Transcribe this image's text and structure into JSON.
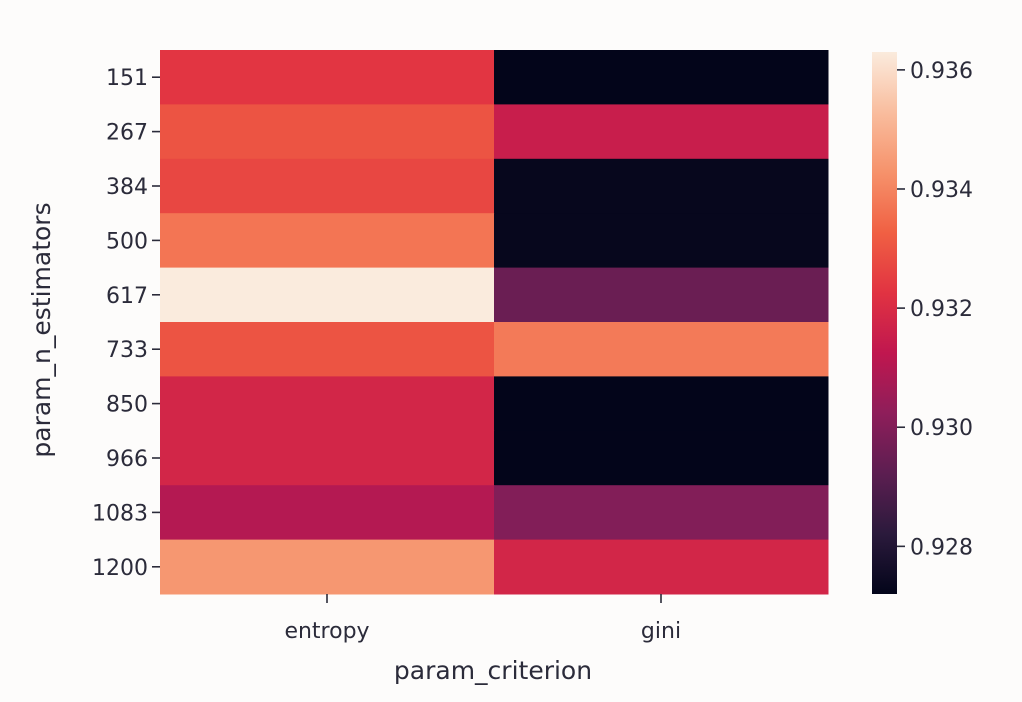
{
  "chart_data": {
    "type": "heatmap",
    "title": "",
    "xlabel": "param_criterion",
    "ylabel": "param_n_estimators",
    "x_categories": [
      "entropy",
      "gini"
    ],
    "y_categories": [
      "151",
      "267",
      "384",
      "500",
      "617",
      "733",
      "850",
      "966",
      "1083",
      "1200"
    ],
    "values": [
      [
        0.9323,
        0.9272
      ],
      [
        0.933,
        0.9315
      ],
      [
        0.9327,
        0.9273
      ],
      [
        0.9337,
        0.9273
      ],
      [
        0.9363,
        0.9295
      ],
      [
        0.933,
        0.9338
      ],
      [
        0.9318,
        0.9272
      ],
      [
        0.9318,
        0.9272
      ],
      [
        0.931,
        0.93
      ],
      [
        0.9344,
        0.9318
      ]
    ],
    "colorbar": {
      "min": 0.9272,
      "max": 0.9363,
      "ticks": [
        0.928,
        0.93,
        0.932,
        0.934,
        0.936
      ],
      "tick_labels": [
        "0.928",
        "0.930",
        "0.932",
        "0.934",
        "0.936"
      ]
    },
    "colormap": "rocket",
    "colormap_stops": [
      "#03051a",
      "#2b1a3c",
      "#5c1e51",
      "#8e1e5a",
      "#c0174f",
      "#e13342",
      "#f06043",
      "#f6926b",
      "#f9bd9e",
      "#faebdd"
    ]
  }
}
